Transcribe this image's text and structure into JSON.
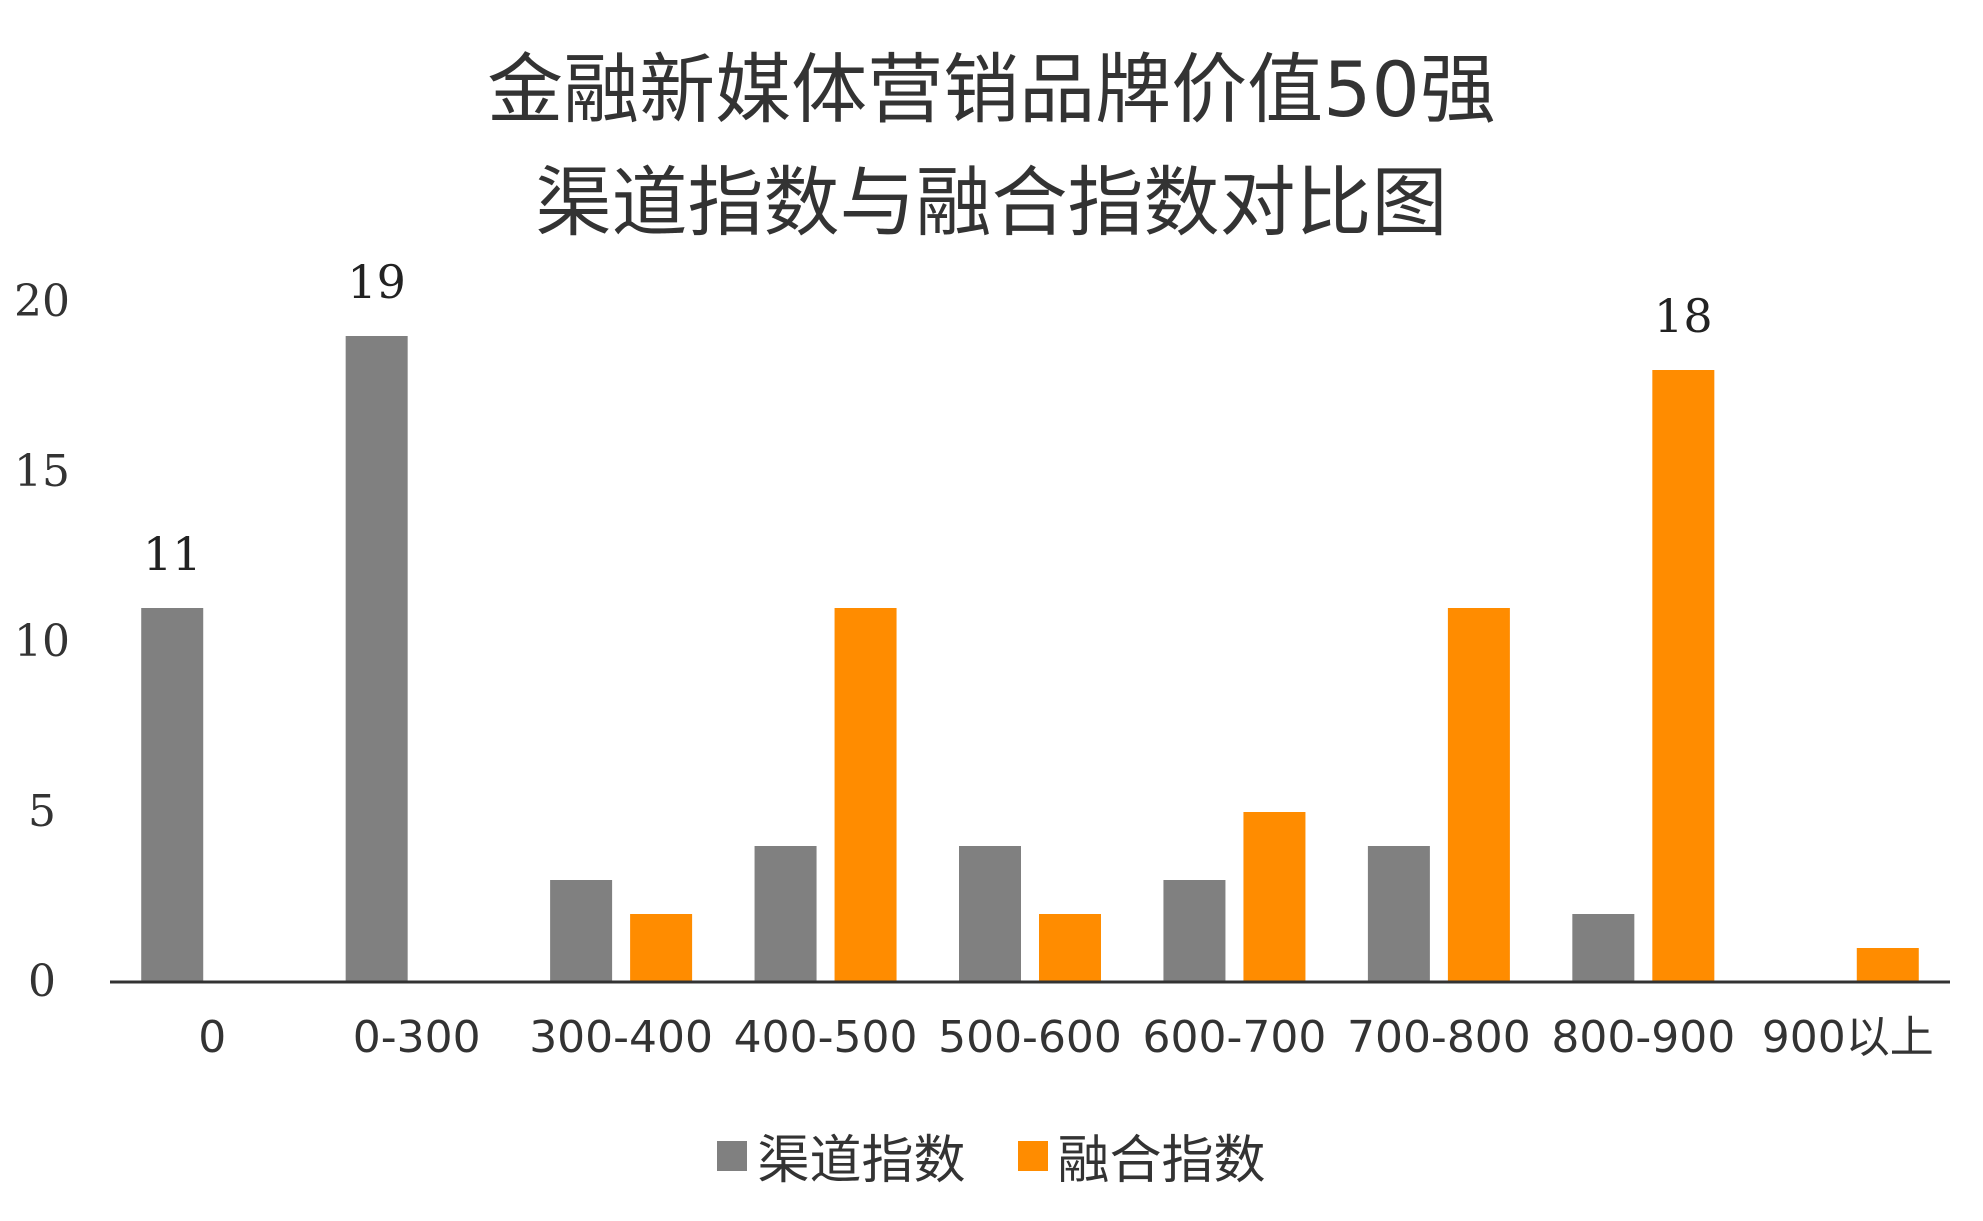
{
  "chart_data": {
    "type": "bar",
    "title_line1": "金融新媒体营销品牌价值50强",
    "title_line2": "渠道指数与融合指数对比图",
    "categories": [
      "0",
      "0-300",
      "300-400",
      "400-500",
      "500-600",
      "600-700",
      "700-800",
      "800-900",
      "900以上"
    ],
    "series": [
      {
        "name": "渠道指数",
        "color": "#808080",
        "values": [
          11,
          19,
          3,
          4,
          4,
          3,
          4,
          2,
          0
        ]
      },
      {
        "name": "融合指数",
        "color": "#ff8c00",
        "values": [
          0,
          0,
          2,
          11,
          2,
          5,
          11,
          18,
          1
        ]
      }
    ],
    "data_labels": [
      {
        "series": 0,
        "index": 0,
        "text": "11"
      },
      {
        "series": 0,
        "index": 1,
        "text": "19"
      },
      {
        "series": 1,
        "index": 7,
        "text": "18"
      }
    ],
    "yticks": [
      0,
      5,
      10,
      15,
      20
    ],
    "ylim": [
      0,
      20
    ],
    "grid": false,
    "legend_position": "bottom"
  }
}
